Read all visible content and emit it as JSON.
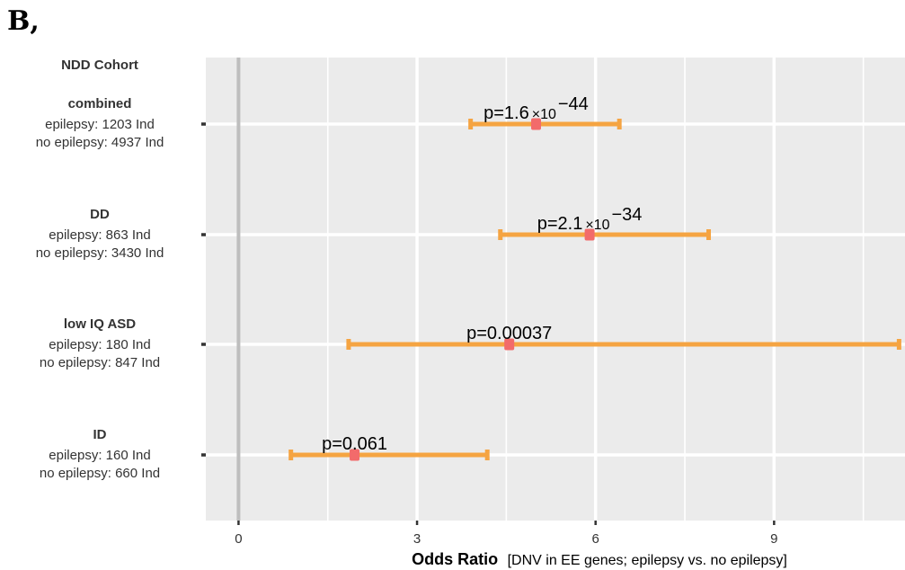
{
  "panel_label": "B,",
  "chart_data": {
    "type": "forest",
    "y_axis_header": "NDD Cohort",
    "xlabel_bold": "Odds Ratio",
    "xlabel_note": "[DNV in EE genes; epilepsy vs. no epilepsy]",
    "x_ticks": [
      0,
      3,
      6,
      9
    ],
    "xlim": [
      -0.55,
      11.2
    ],
    "reference_line": 0,
    "grid": true,
    "colors": {
      "panel": "#ebebeb",
      "grid": "#ffffff",
      "reference": "#bebebe",
      "ci": "#f5a442",
      "point": "#f26b6b"
    },
    "rows": [
      {
        "name": "combined",
        "line1": "epilepsy: 1203 Ind",
        "line2": "no epilepsy: 4937 Ind",
        "or": 5.0,
        "lower": 3.9,
        "upper": 6.4,
        "p_base": "p=1.6",
        "p_times": "×10",
        "p_exp": "−44"
      },
      {
        "name": "DD",
        "line1": "epilepsy: 863 Ind",
        "line2": "no epilepsy: 3430 Ind",
        "or": 5.9,
        "lower": 4.4,
        "upper": 7.9,
        "p_base": "p=2.1",
        "p_times": "×10",
        "p_exp": "−34"
      },
      {
        "name": "low IQ ASD",
        "line1": "epilepsy: 180 Ind",
        "line2": "no epilepsy: 847 Ind",
        "or": 4.55,
        "lower": 1.85,
        "upper": 11.1,
        "p_base": "p=0.00037",
        "p_times": "",
        "p_exp": ""
      },
      {
        "name": "ID",
        "line1": "epilepsy: 160 Ind",
        "line2": "no epilepsy: 660 Ind",
        "or": 1.95,
        "lower": 0.88,
        "upper": 4.18,
        "p_base": "p=0.061",
        "p_times": "",
        "p_exp": ""
      }
    ]
  }
}
